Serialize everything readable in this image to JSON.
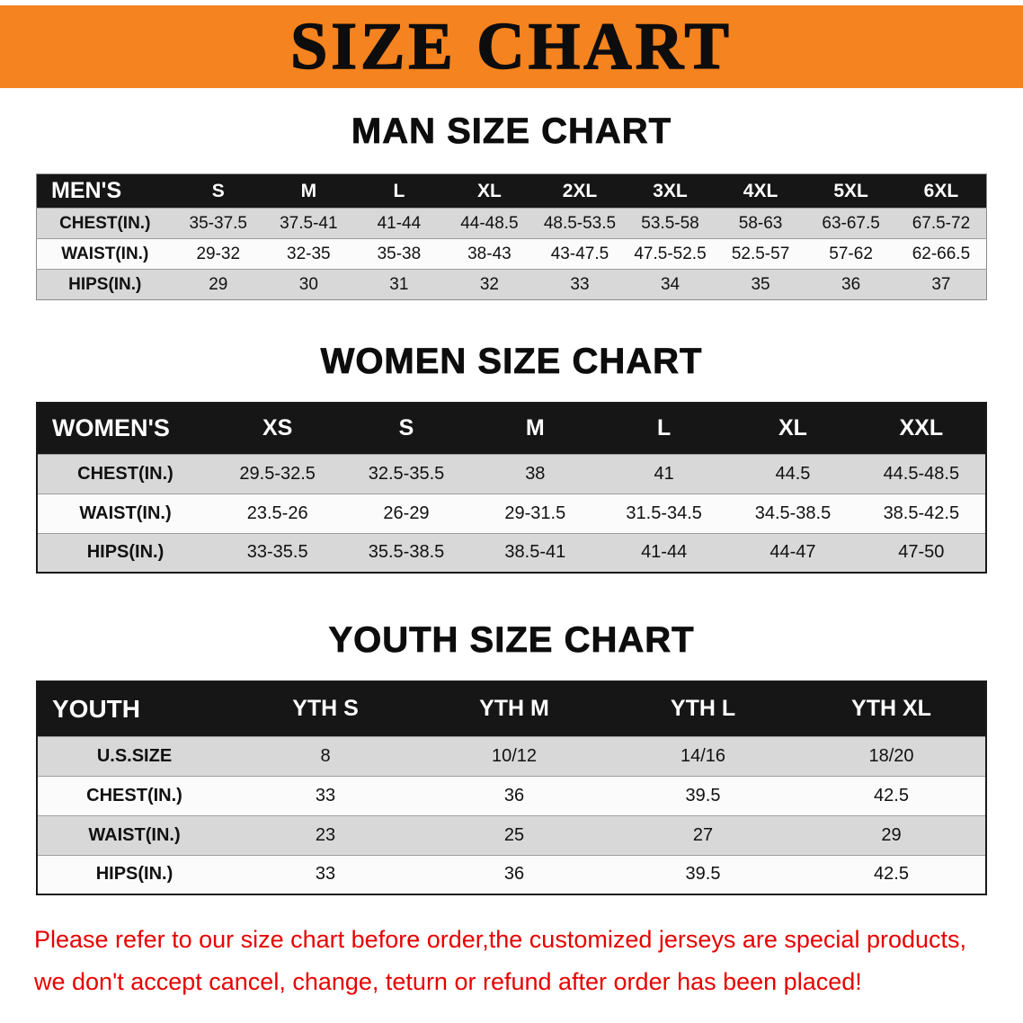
{
  "banner": {
    "title": "SIZE CHART"
  },
  "colors": {
    "banner_orange": "#f5831f",
    "header_black": "#161616",
    "row_shade": "#d8d8d8",
    "footer_red": "#e60000"
  },
  "sections": [
    {
      "id": "men",
      "heading": "MAN SIZE CHART",
      "table": {
        "header": [
          "MEN'S",
          "S",
          "M",
          "L",
          "XL",
          "2XL",
          "3XL",
          "4XL",
          "5XL",
          "6XL"
        ],
        "rows": [
          {
            "label": "CHEST(IN.)",
            "values": [
              "35-37.5",
              "37.5-41",
              "41-44",
              "44-48.5",
              "48.5-53.5",
              "53.5-58",
              "58-63",
              "63-67.5",
              "67.5-72"
            ]
          },
          {
            "label": "WAIST(IN.)",
            "values": [
              "29-32",
              "32-35",
              "35-38",
              "38-43",
              "43-47.5",
              "47.5-52.5",
              "52.5-57",
              "57-62",
              "62-66.5"
            ]
          },
          {
            "label": "HIPS(IN.)",
            "values": [
              "29",
              "30",
              "31",
              "32",
              "33",
              "34",
              "35",
              "36",
              "37"
            ]
          }
        ]
      }
    },
    {
      "id": "women",
      "heading": "WOMEN SIZE CHART",
      "table": {
        "header": [
          "WOMEN'S",
          "XS",
          "S",
          "M",
          "L",
          "XL",
          "XXL"
        ],
        "rows": [
          {
            "label": "CHEST(IN.)",
            "values": [
              "29.5-32.5",
              "32.5-35.5",
              "38",
              "41",
              "44.5",
              "44.5-48.5"
            ]
          },
          {
            "label": "WAIST(IN.)",
            "values": [
              "23.5-26",
              "26-29",
              "29-31.5",
              "31.5-34.5",
              "34.5-38.5",
              "38.5-42.5"
            ]
          },
          {
            "label": "HIPS(IN.)",
            "values": [
              "33-35.5",
              "35.5-38.5",
              "38.5-41",
              "41-44",
              "44-47",
              "47-50"
            ]
          }
        ]
      }
    },
    {
      "id": "youth",
      "heading": "YOUTH SIZE CHART",
      "table": {
        "header": [
          "YOUTH",
          "YTH S",
          "YTH M",
          "YTH L",
          "YTH XL"
        ],
        "rows": [
          {
            "label": "U.S.SIZE",
            "values": [
              "8",
              "10/12",
              "14/16",
              "18/20"
            ]
          },
          {
            "label": "CHEST(IN.)",
            "values": [
              "33",
              "36",
              "39.5",
              "42.5"
            ]
          },
          {
            "label": "WAIST(IN.)",
            "values": [
              "23",
              "25",
              "27",
              "29"
            ]
          },
          {
            "label": "HIPS(IN.)",
            "values": [
              "33",
              "36",
              "39.5",
              "42.5"
            ]
          }
        ]
      }
    }
  ],
  "footer": {
    "lines": [
      "Please refer to our size chart before order,the customized jerseys are special products,",
      "we don't accept cancel, change, teturn or refund after order has been placed!"
    ]
  }
}
